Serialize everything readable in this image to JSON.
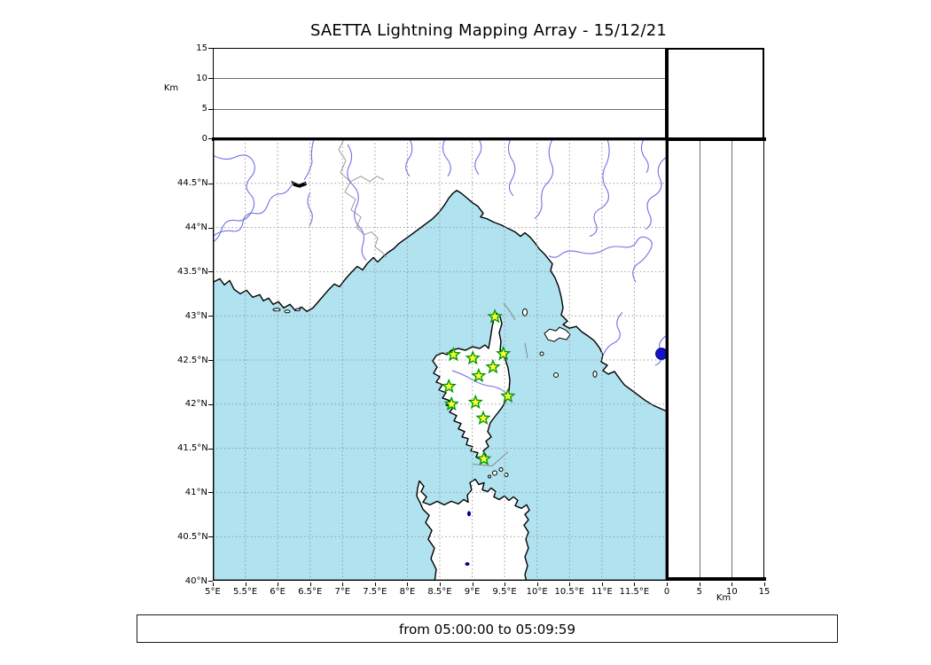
{
  "title": "SAETTA Lightning Mapping Array - 15/12/21",
  "footer_text": "from 05:00:00 to 05:09:59",
  "axis_labels": {
    "altitude_unit_left": "Km",
    "altitude_unit_bottom": "Km"
  },
  "longitude_ticks": [
    "5°E",
    "5.5°E",
    "6°E",
    "6.5°E",
    "7°E",
    "7.5°E",
    "8°E",
    "8.5°E",
    "9°E",
    "9.5°E",
    "10°E",
    "10.5°E",
    "11°E",
    "11.5°E"
  ],
  "latitude_ticks": [
    "44.5°N",
    "44°N",
    "43.5°N",
    "43°N",
    "42.5°N",
    "42°N",
    "41.5°N",
    "41°N",
    "40.5°N",
    "40°N"
  ],
  "altitude_ticks_top_panel": [
    "15",
    "10",
    "5",
    "0"
  ],
  "altitude_ticks_right_panel": [
    "0",
    "5",
    "10",
    "15"
  ],
  "chart_data": {
    "type": "scatter",
    "subtype": "geographic-map-with-altitude-panels",
    "title": "SAETTA Lightning Mapping Array - 15/12/21",
    "date": "15/12/21",
    "time_window": {
      "from": "05:00:00",
      "to": "05:09:59"
    },
    "map_extent": {
      "lon_min": 5,
      "lon_max": 12,
      "lat_min": 40,
      "lat_max": 45,
      "grid_step_deg": 0.5
    },
    "altitude_axis_km": {
      "min": 0,
      "max": 15,
      "ticks": [
        0,
        5,
        10,
        15
      ],
      "gridlines": [
        5,
        10
      ],
      "unit": "Km"
    },
    "stations": [
      {
        "lon": 9.35,
        "lat": 42.99
      },
      {
        "lon": 8.71,
        "lat": 42.56
      },
      {
        "lon": 9.01,
        "lat": 42.52
      },
      {
        "lon": 9.48,
        "lat": 42.57
      },
      {
        "lon": 9.32,
        "lat": 42.42
      },
      {
        "lon": 9.1,
        "lat": 42.32
      },
      {
        "lon": 8.64,
        "lat": 42.2
      },
      {
        "lon": 9.55,
        "lat": 42.09
      },
      {
        "lon": 9.05,
        "lat": 42.02
      },
      {
        "lon": 8.68,
        "lat": 42.0
      },
      {
        "lon": 9.17,
        "lat": 41.84
      },
      {
        "lon": 9.18,
        "lat": 41.38
      }
    ],
    "lightning_detections": [],
    "marker_style": {
      "shape": "star",
      "fill": "#ffff33",
      "edge": "#009b00"
    },
    "colors": {
      "sea": "#b0e2ef",
      "land": "#ffffff",
      "coastline": "#000000",
      "rivers": "#7070e8",
      "country_borders": "#999999",
      "grid": "#9a9a9a",
      "lake_dot": "#1212cc"
    }
  }
}
